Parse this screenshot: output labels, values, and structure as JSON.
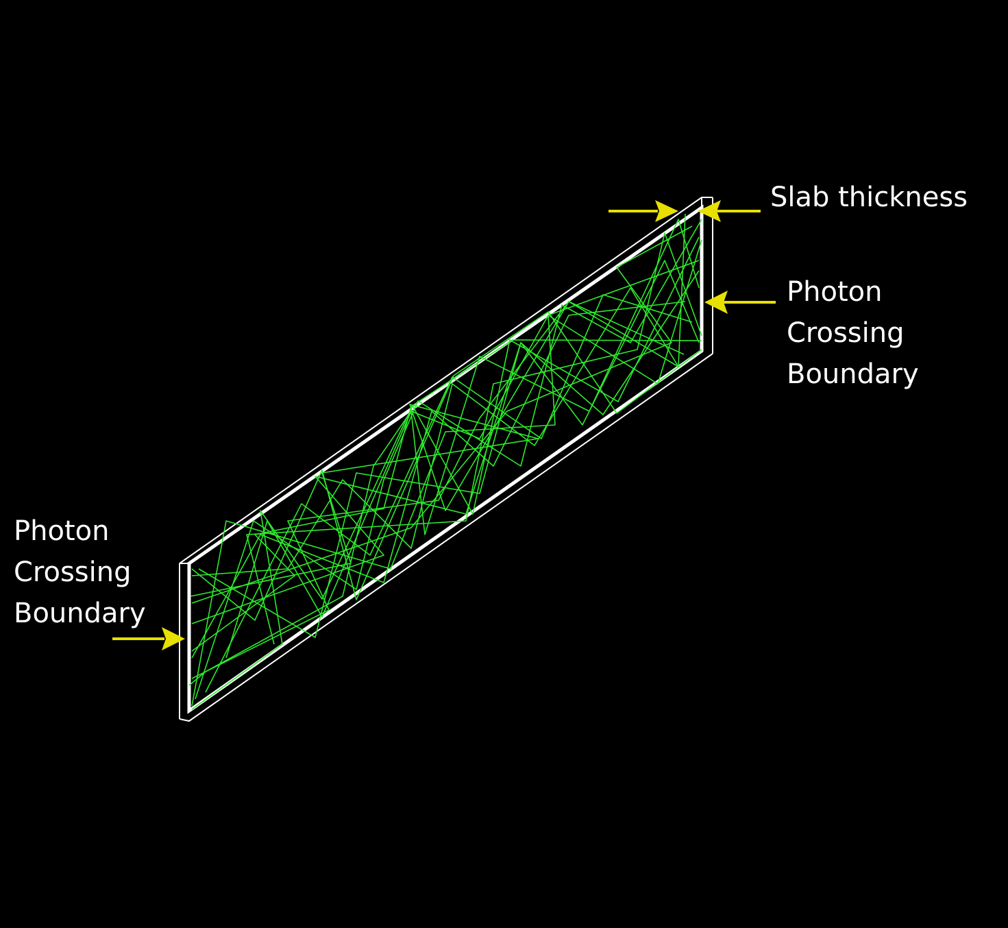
{
  "labels": {
    "slab_thickness": "Slab thickness",
    "right_boundary": [
      "Photon",
      "Crossing",
      "Boundary"
    ],
    "left_boundary": [
      "Photon",
      "Crossing",
      "Boundary"
    ]
  },
  "colors": {
    "background": "#000000",
    "slab_outline": "#ffffff",
    "photon_tracks": "#2ee82e",
    "arrows": "#e8e000",
    "label_text": "#ffffff"
  },
  "icons": [
    "arrow-right-icon",
    "arrow-left-icon"
  ]
}
